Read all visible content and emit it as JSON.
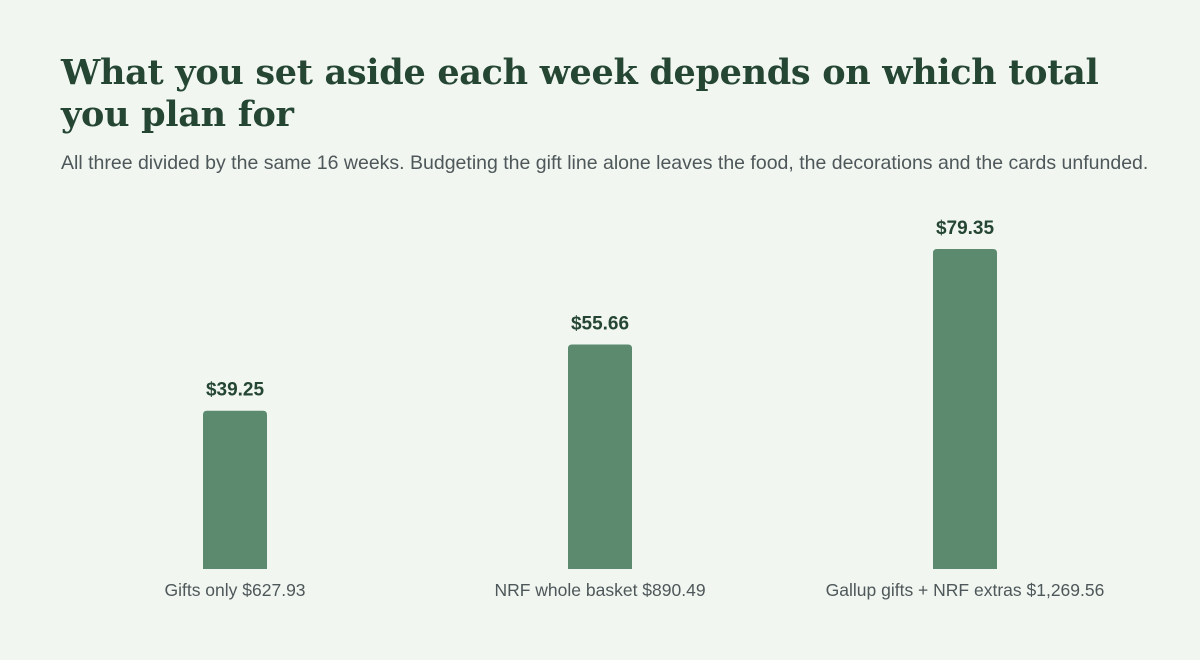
{
  "title": "What you set aside each week depends on which total you plan for",
  "subtitle": "All three divided by the same 16 weeks. Budgeting the gift line alone leaves the food, the decorations and the cards unfunded.",
  "colors": {
    "background": "#f1f6f1",
    "bar": "#5b8a6f",
    "title": "#254632",
    "text": "#4e5759"
  },
  "chart_data": {
    "type": "bar",
    "categories": [
      "Gifts only $627.93",
      "NRF whole basket $890.49",
      "Gallup gifts + NRF extras $1,269.56"
    ],
    "values": [
      39.25,
      55.66,
      79.35
    ],
    "value_labels": [
      "$39.25",
      "$55.66",
      "$79.35"
    ],
    "ylim": [
      0,
      80
    ],
    "grid": false
  }
}
